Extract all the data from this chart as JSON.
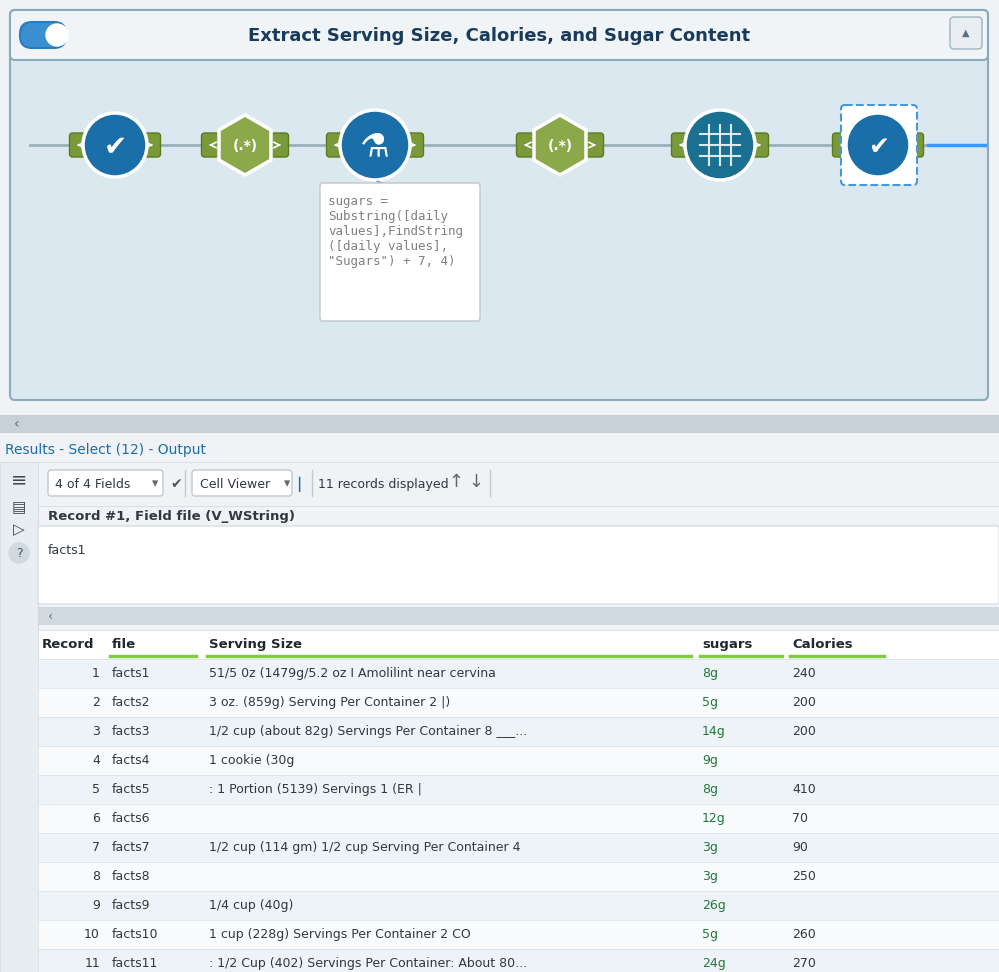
{
  "title": "Extract Serving Size, Calories, and Sugar Content",
  "workflow_bg": "#dce8f0",
  "workflow_border": "#8aabbb",
  "header_bg": "#f0f4f7",
  "tooltip_text": "sugars =\nSubstring([daily\nvalues],FindString\n([daily values],\n\"Sugars\") + 7, 4)",
  "results_label": "Results - Select (12) - Output",
  "fields_text": "4 of 4 Fields",
  "viewer_text": "Cell Viewer",
  "records_text": "11 records displayed",
  "record_field_label": "Record #1, Field file (V_WString)",
  "record_field_value": "facts1",
  "table_headers": [
    "Record",
    "file",
    "Serving Size",
    "sugars",
    "Calories"
  ],
  "table_data": [
    [
      "1",
      "facts1",
      "51/5 0z (1479g/5.2 oz I Amolilint near cervina",
      "8g",
      "240"
    ],
    [
      "2",
      "facts2",
      "3 oz. (859g) Serving Per Container 2 |)",
      "5g",
      "200"
    ],
    [
      "3",
      "facts3",
      "1/2 cup (about 82g) Servings Per Container 8 ___...",
      "14g",
      "200"
    ],
    [
      "4",
      "facts4",
      "1 cookie (30g",
      "9g",
      ""
    ],
    [
      "5",
      "facts5",
      ": 1 Portion (5139) Servings 1 (ER |",
      "8g",
      "410"
    ],
    [
      "6",
      "facts6",
      "",
      "12g",
      "70"
    ],
    [
      "7",
      "facts7",
      "1/2 cup (114 gm) 1/2 cup Serving Per Container 4",
      "3g",
      "90"
    ],
    [
      "8",
      "facts8",
      "",
      "3g",
      "250"
    ],
    [
      "9",
      "facts9",
      "1/4 cup (40g)",
      "26g",
      ""
    ],
    [
      "10",
      "facts10",
      "1 cup (228g) Servings Per Container 2 CO",
      "5g",
      "260"
    ],
    [
      "11",
      "facts11",
      ": 1/2 Cup (402) Servings Per Container: About 80...",
      "24g",
      "270"
    ]
  ],
  "blue_node_color": "#1a6fa8",
  "green_hex_color": "#8ba84a",
  "green_tab_color": "#7a9a3a",
  "dashed_box_color": "#4499dd",
  "blue_line_color": "#3399ff",
  "table_row_alt": "#eef3f8",
  "table_row_normal": "#f8fafc",
  "table_header_underline": "#80cc40",
  "sugars_color": "#207838",
  "results_label_color": "#1a6fa8"
}
